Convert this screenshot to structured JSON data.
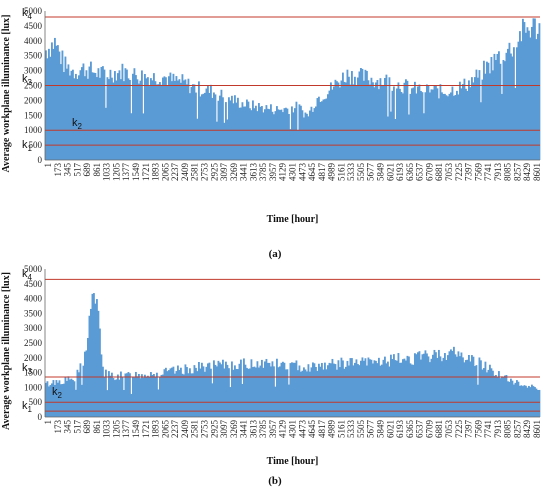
{
  "chart_data": [
    {
      "type": "bar",
      "panel_label": "(a)",
      "xlabel": "Time [hour]",
      "ylabel": "Average workplane illuminance [lux]",
      "ylim": [
        0,
        5000
      ],
      "yticks": [
        "0",
        "500",
        "1000",
        "1500",
        "2000",
        "2500",
        "3000",
        "3500",
        "4000",
        "4500",
        "5000"
      ],
      "xticks": [
        "1",
        "173",
        "345",
        "517",
        "689",
        "861",
        "1033",
        "1205",
        "1377",
        "1549",
        "1721",
        "1893",
        "2065",
        "2237",
        "2409",
        "2581",
        "2753",
        "2925",
        "3097",
        "3269",
        "3441",
        "3613",
        "3785",
        "3957",
        "4129",
        "4301",
        "4473",
        "4645",
        "4817",
        "4989",
        "5161",
        "5333",
        "5505",
        "5677",
        "5849",
        "6021",
        "6193",
        "6365",
        "6537",
        "6709",
        "6881",
        "7053",
        "7225",
        "7397",
        "7569",
        "7741",
        "7913",
        "8085",
        "8257",
        "8429",
        "8601"
      ],
      "grid": false,
      "color": "#5b9bd5",
      "thresholds": [
        {
          "label": "k",
          "sub": "1",
          "value": 500
        },
        {
          "label": "k",
          "sub": "2",
          "value": 1000
        },
        {
          "label": "k",
          "sub": "3",
          "value": 2500
        },
        {
          "label": "k",
          "sub": "4",
          "value": 4800
        }
      ],
      "profile": {
        "x": [
          1,
          173,
          345,
          517,
          689,
          861,
          1033,
          1205,
          1377,
          1549,
          1721,
          1893,
          2065,
          2237,
          2409,
          2581,
          2753,
          2925,
          3097,
          3269,
          3441,
          3613,
          3785,
          3957,
          4129,
          4301,
          4473,
          4645,
          4817,
          4989,
          5161,
          5333,
          5505,
          5677,
          5849,
          6021,
          6193,
          6365,
          6537,
          6709,
          6881,
          7053,
          7225,
          7397,
          7569,
          7741,
          7913,
          8085,
          8257,
          8429,
          8601,
          8760
        ],
        "y": [
          3700,
          4000,
          3200,
          3000,
          3100,
          3000,
          2900,
          2950,
          3000,
          2900,
          2850,
          2800,
          2850,
          2700,
          2650,
          2500,
          2400,
          2350,
          2200,
          2100,
          1950,
          1850,
          1800,
          1750,
          1700,
          1750,
          1800,
          1500,
          2100,
          2300,
          2600,
          2900,
          2850,
          2800,
          2700,
          2700,
          2600,
          2500,
          2400,
          2400,
          2350,
          2300,
          2400,
          2500,
          2700,
          3000,
          3300,
          3600,
          3800,
          4300,
          4500,
          4500
        ]
      }
    },
    {
      "type": "bar",
      "panel_label": "(b)",
      "xlabel": "Time [hour]",
      "ylabel": "Average workplane illuminance [lux]",
      "ylim": [
        0,
        5000
      ],
      "yticks": [
        "0",
        "500",
        "1000",
        "1500",
        "2000",
        "2500",
        "3000",
        "3500",
        "4000",
        "4500",
        "5000"
      ],
      "xticks": [
        "1",
        "173",
        "345",
        "517",
        "689",
        "861",
        "1033",
        "1205",
        "1377",
        "1549",
        "1721",
        "1893",
        "2065",
        "2237",
        "2409",
        "2581",
        "2753",
        "2925",
        "3097",
        "3269",
        "3441",
        "3613",
        "3785",
        "3957",
        "4129",
        "4301",
        "4473",
        "4645",
        "4817",
        "4989",
        "5161",
        "5333",
        "5505",
        "5677",
        "5849",
        "6021",
        "6193",
        "6365",
        "6537",
        "6709",
        "6881",
        "7053",
        "7225",
        "7397",
        "7569",
        "7741",
        "7913",
        "8085",
        "8257",
        "8429",
        "8601"
      ],
      "grid": false,
      "color": "#5b9bd5",
      "thresholds": [
        {
          "label": "k",
          "sub": "1",
          "value": 200
        },
        {
          "label": "k",
          "sub": "2",
          "value": 500
        },
        {
          "label": "k",
          "sub": "3",
          "value": 1350
        },
        {
          "label": "k",
          "sub": "4",
          "value": 4650
        }
      ],
      "profile": {
        "x": [
          1,
          173,
          345,
          517,
          689,
          760,
          861,
          950,
          1033,
          1205,
          1377,
          1549,
          1721,
          1893,
          2065,
          2237,
          2409,
          2581,
          2753,
          2925,
          3097,
          3269,
          3441,
          3613,
          3785,
          3957,
          4129,
          4301,
          4473,
          4645,
          4817,
          4989,
          5161,
          5333,
          5505,
          5677,
          5849,
          6021,
          6193,
          6365,
          6537,
          6709,
          6881,
          7053,
          7225,
          7397,
          7569,
          7741,
          7913,
          8085,
          8257,
          8429,
          8601,
          8760
        ],
        "y": [
          1100,
          1200,
          1250,
          1300,
          1900,
          2900,
          4400,
          3300,
          1500,
          1400,
          1400,
          1450,
          1450,
          1500,
          1500,
          1550,
          1600,
          1650,
          1700,
          1750,
          1750,
          1800,
          1800,
          1800,
          1850,
          1850,
          1800,
          1750,
          1750,
          1700,
          1750,
          1800,
          1800,
          1850,
          1850,
          1850,
          1900,
          1900,
          1950,
          2000,
          2000,
          2050,
          2100,
          2150,
          2200,
          2050,
          1950,
          1800,
          1600,
          1400,
          1200,
          1100,
          1050,
          1000
        ]
      }
    }
  ]
}
